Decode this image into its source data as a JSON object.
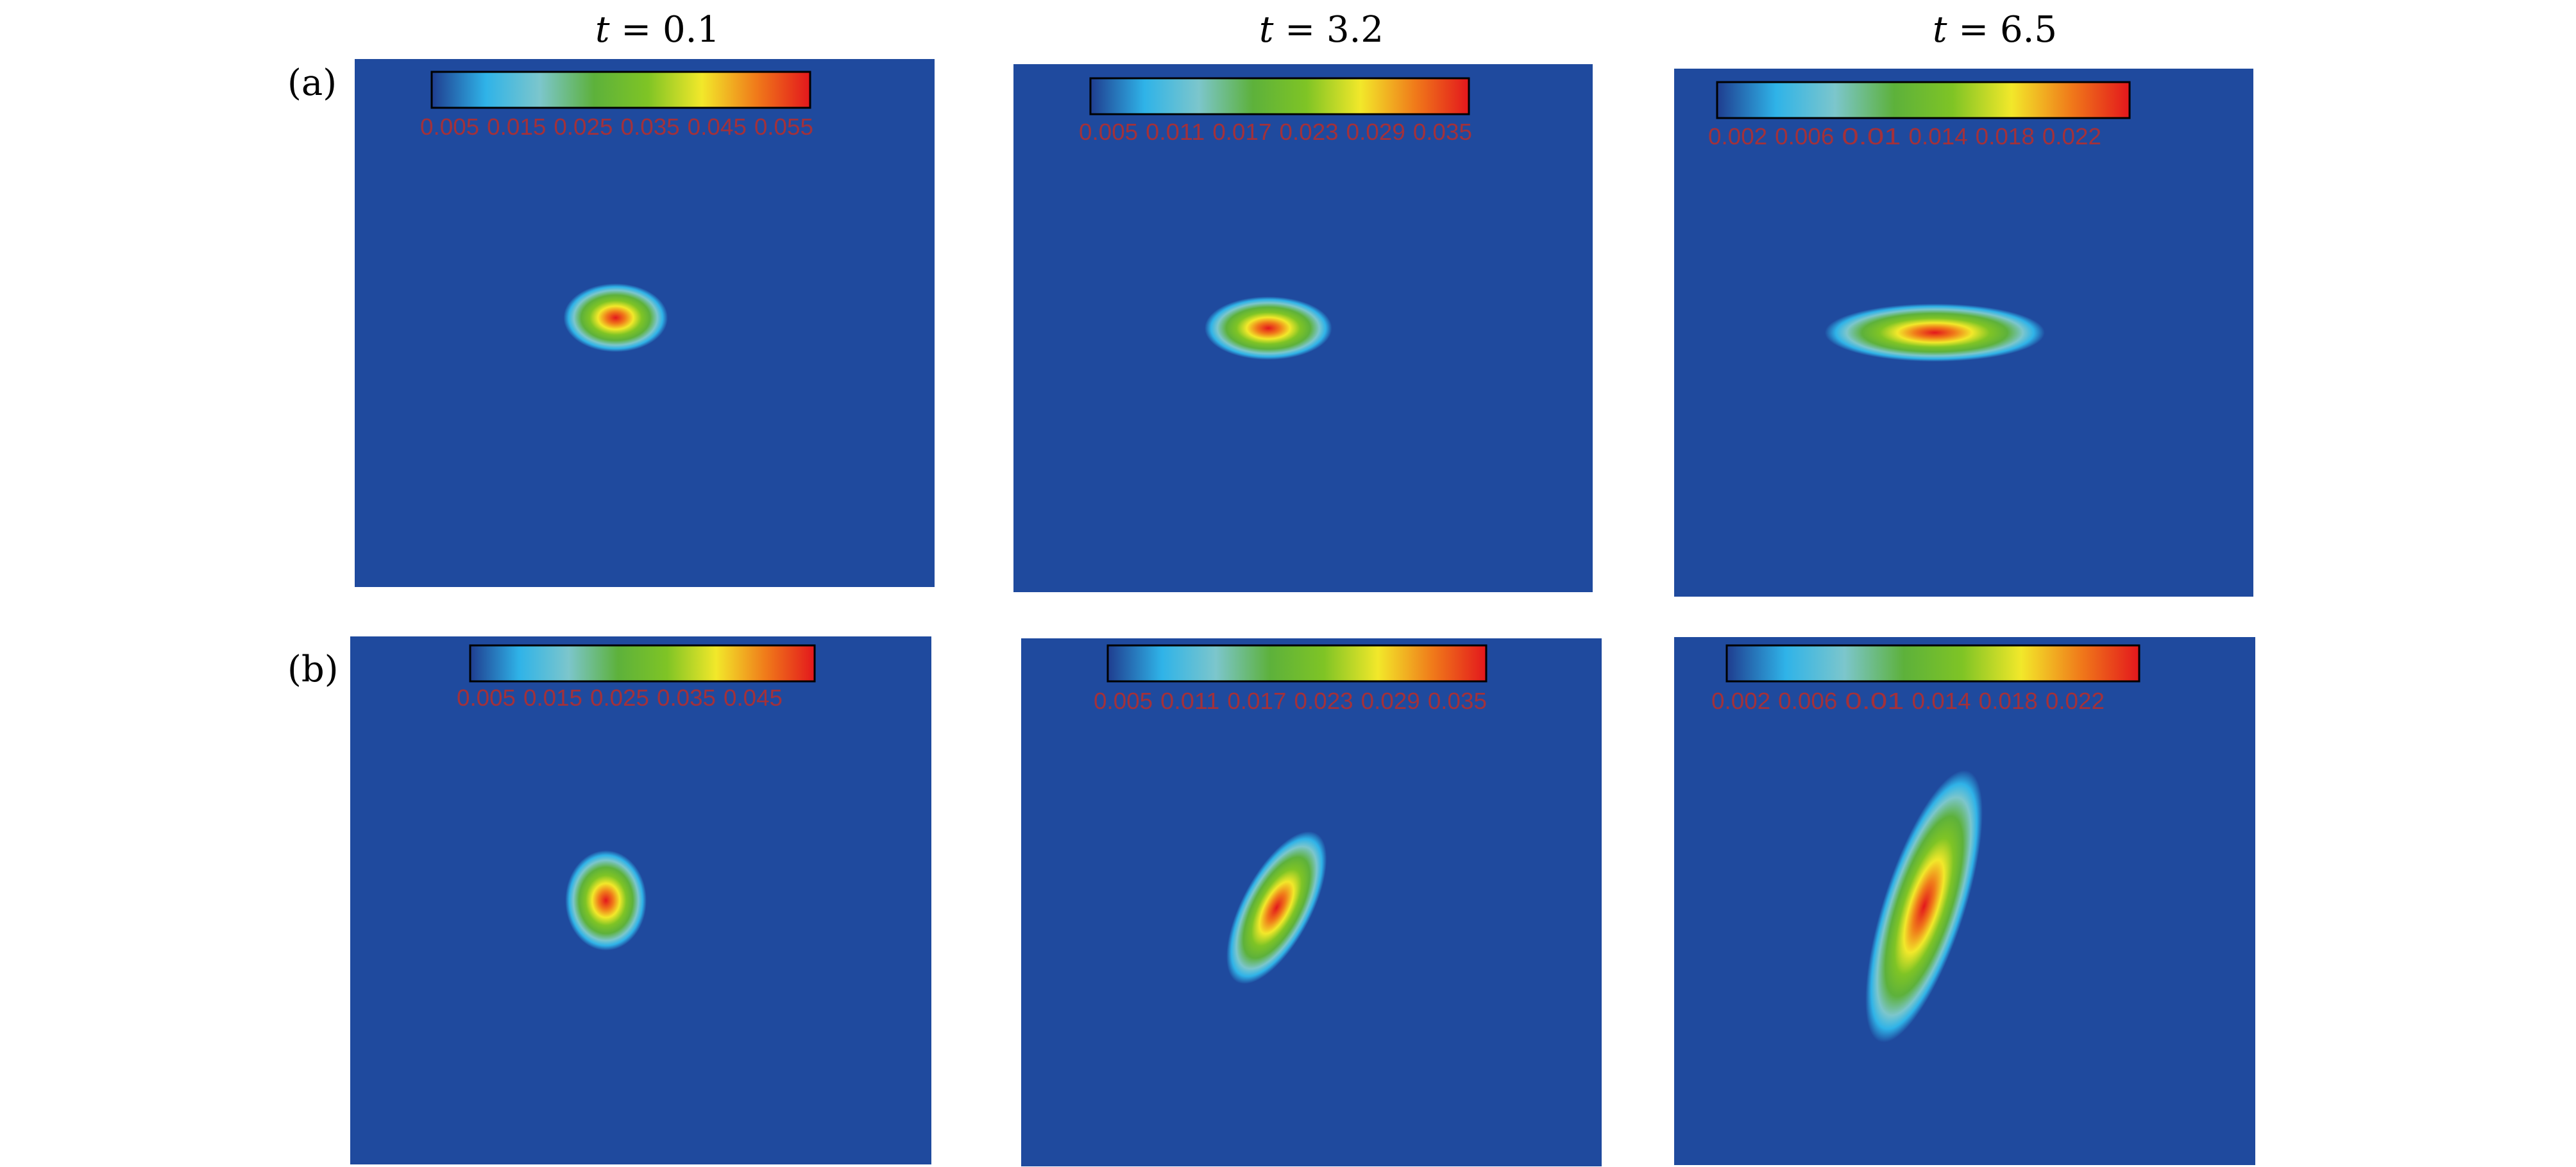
{
  "colors": {
    "background": "#1f4a9e",
    "colormap": [
      "#1f3d8f",
      "#2fb3e8",
      "#7cc6cc",
      "#5db13b",
      "#7fc425",
      "#f2e82a",
      "#f07b1a",
      "#e3171c"
    ],
    "tick_label": "#a3313a"
  },
  "column_titles": [
    {
      "var": "t",
      "rest": " = 0.1"
    },
    {
      "var": "t",
      "rest": " = 3.2"
    },
    {
      "var": "t",
      "rest": " = 6.5"
    }
  ],
  "row_labels": [
    "(a)",
    "(b)"
  ],
  "chart_data": [
    {
      "type": "heatmap",
      "panel": "a1",
      "time": 0.1,
      "colorbar_ticks": [
        "0.005",
        "0.015",
        "0.025",
        "0.035",
        "0.045",
        "0.055"
      ],
      "blob": {
        "cx": 0.45,
        "cy": 0.49,
        "rx": 0.09,
        "ry": 0.065,
        "angle": 0
      }
    },
    {
      "type": "heatmap",
      "panel": "a2",
      "time": 3.2,
      "colorbar_ticks": [
        "0.005",
        "0.011",
        "0.017",
        "0.023",
        "0.029",
        "0.035"
      ],
      "blob": {
        "cx": 0.44,
        "cy": 0.5,
        "rx": 0.11,
        "ry": 0.06,
        "angle": 0
      }
    },
    {
      "type": "heatmap",
      "panel": "a3",
      "time": 6.5,
      "colorbar_ticks": [
        "0.002",
        "0.006",
        "0.01",
        "0.014",
        "0.018",
        "0.022"
      ],
      "blob": {
        "cx": 0.45,
        "cy": 0.5,
        "rx": 0.19,
        "ry": 0.055,
        "angle": 0
      }
    },
    {
      "type": "heatmap",
      "panel": "b1",
      "time": 0.1,
      "colorbar_ticks": [
        "0.005",
        "0.015",
        "0.025",
        "0.035",
        "0.045"
      ],
      "blob": {
        "cx": 0.44,
        "cy": 0.5,
        "rx": 0.07,
        "ry": 0.095,
        "angle": 0
      }
    },
    {
      "type": "heatmap",
      "panel": "b2",
      "time": 3.2,
      "colorbar_ticks": [
        "0.005",
        "0.011",
        "0.017",
        "0.023",
        "0.029",
        "0.035"
      ],
      "blob": {
        "cx": 0.44,
        "cy": 0.51,
        "rx": 0.06,
        "ry": 0.16,
        "angle": 28
      }
    },
    {
      "type": "heatmap",
      "panel": "b3",
      "time": 6.5,
      "colorbar_ticks": [
        "0.002",
        "0.006",
        "0.01",
        "0.014",
        "0.018",
        "0.022"
      ],
      "blob": {
        "cx": 0.43,
        "cy": 0.51,
        "rx": 0.07,
        "ry": 0.27,
        "angle": 18
      }
    }
  ]
}
